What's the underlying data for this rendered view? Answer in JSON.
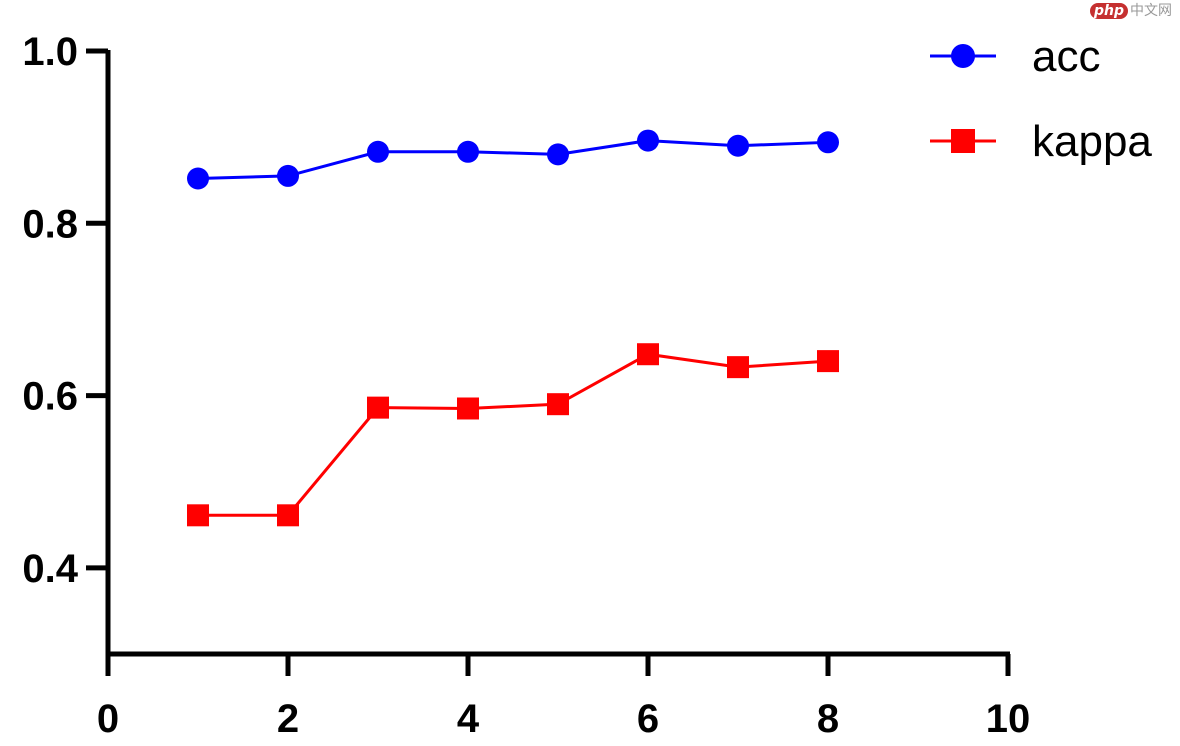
{
  "watermark": {
    "badge": "php",
    "text": "中文网"
  },
  "chart_data": {
    "type": "line",
    "x": [
      1,
      2,
      3,
      4,
      5,
      6,
      7,
      8
    ],
    "series": [
      {
        "name": "acc",
        "values": [
          0.852,
          0.855,
          0.883,
          0.883,
          0.88,
          0.896,
          0.89,
          0.894
        ],
        "color": "#0000ff",
        "marker": "circle"
      },
      {
        "name": "kappa",
        "values": [
          0.461,
          0.461,
          0.586,
          0.585,
          0.59,
          0.648,
          0.633,
          0.64
        ],
        "color": "#ff0000",
        "marker": "square"
      }
    ],
    "xlim": [
      0,
      10
    ],
    "ylim": [
      0.3,
      1.0
    ],
    "xticks": [
      "0",
      "2",
      "4",
      "6",
      "8",
      "10"
    ],
    "yticks": [
      "0.4",
      "0.6",
      "0.8",
      "1.0"
    ],
    "title": "",
    "xlabel": "",
    "ylabel": "",
    "grid": false,
    "legend_position": "top-right"
  }
}
